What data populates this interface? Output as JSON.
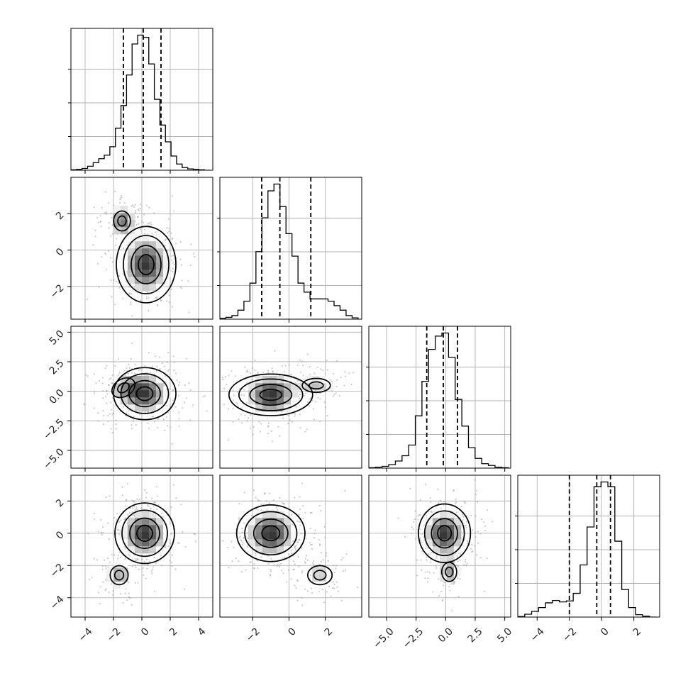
{
  "chart_data": {
    "type": "corner",
    "parameters": [
      {
        "range": [
          -5,
          5
        ],
        "ticks": [
          -4,
          -2,
          0,
          2,
          4
        ],
        "tick_labels": [
          "−4",
          "−2",
          "0",
          "2",
          "4"
        ],
        "quantiles": [
          -1.3,
          0.1,
          1.35
        ],
        "histogram_edges": [
          -5,
          4.8
        ],
        "histogram_counts": [
          1,
          2,
          4,
          9,
          17,
          26,
          34,
          53,
          95,
          146,
          215,
          285,
          305,
          300,
          240,
          160,
          102,
          64,
          32,
          14,
          6,
          3,
          2,
          1,
          0
        ]
      },
      {
        "range": [
          -3.8,
          4.0
        ],
        "ticks": [
          -2,
          0,
          2
        ],
        "tick_labels": [
          "−2",
          "0",
          "2"
        ],
        "quantiles": [
          -1.5,
          -0.5,
          1.2
        ],
        "histogram_edges": [
          -3.8,
          3.8
        ],
        "histogram_counts": [
          2,
          4,
          8,
          20,
          40,
          80,
          150,
          225,
          285,
          300,
          250,
          190,
          140,
          80,
          60,
          45,
          45,
          45,
          40,
          30,
          20,
          8,
          3
        ]
      },
      {
        "range": [
          -6.5,
          5.5
        ],
        "ticks": [
          -5,
          -2.5,
          0,
          2.5,
          5
        ],
        "tick_labels": [
          "−5.0",
          "−2.5",
          "0.0",
          "2.5",
          "5.0"
        ],
        "quantiles": [
          -1.6,
          -0.2,
          1.0
        ],
        "histogram_edges": [
          -6.5,
          5.3
        ],
        "histogram_counts": [
          1,
          2,
          4,
          8,
          16,
          28,
          52,
          118,
          196,
          268,
          298,
          305,
          250,
          155,
          95,
          46,
          22,
          10,
          6,
          2,
          1
        ]
      },
      {
        "range": [
          -5.2,
          3.6
        ],
        "ticks": [
          -4,
          -2,
          0,
          2
        ],
        "tick_labels": [
          "−4",
          "−2",
          "0",
          "2"
        ],
        "quantiles": [
          -2.0,
          -0.3,
          0.55
        ],
        "histogram_edges": [
          -5.2,
          3.4
        ],
        "histogram_counts": [
          1,
          6,
          12,
          20,
          30,
          35,
          32,
          34,
          50,
          110,
          190,
          275,
          285,
          275,
          160,
          58,
          20,
          5,
          2,
          0
        ]
      }
    ],
    "joint": {
      "1,0": [
        {
          "mean": [
            0.3,
            -0.8
          ],
          "cov": [
            [
              1.0,
              0
            ],
            [
              0,
              1.0
            ]
          ],
          "weight": 0.8
        },
        {
          "mean": [
            -1.4,
            1.6
          ],
          "cov": [
            [
              0.35,
              0
            ],
            [
              0,
              0.3
            ]
          ],
          "weight": 0.2
        }
      ],
      "2,0": [
        {
          "mean": [
            0.2,
            -0.2
          ],
          "cov": [
            [
              1.1,
              0
            ],
            [
              0,
              1.1
            ]
          ],
          "weight": 0.8
        },
        {
          "mean": [
            -1.3,
            0.3
          ],
          "cov": [
            [
              0.7,
              0.1
            ],
            [
              0.1,
              0.6
            ]
          ],
          "weight": 0.2
        }
      ],
      "2,1": [
        {
          "mean": [
            -1.0,
            -0.3
          ],
          "cov": [
            [
              0.7,
              0
            ],
            [
              0,
              1.2
            ]
          ],
          "weight": 0.8
        },
        {
          "mean": [
            1.5,
            0.5
          ],
          "cov": [
            [
              0.6,
              0
            ],
            [
              0,
              0.35
            ]
          ],
          "weight": 0.2
        }
      ],
      "3,0": [
        {
          "mean": [
            0.2,
            0.0
          ],
          "cov": [
            [
              1.0,
              0
            ],
            [
              0,
              0.8
            ]
          ],
          "weight": 0.8
        },
        {
          "mean": [
            -1.6,
            -2.6
          ],
          "cov": [
            [
              0.4,
              0
            ],
            [
              0,
              0.35
            ]
          ],
          "weight": 0.2
        }
      ],
      "3,1": [
        {
          "mean": [
            -1.0,
            0.0
          ],
          "cov": [
            [
              0.7,
              0
            ],
            [
              0,
              0.8
            ]
          ],
          "weight": 0.8
        },
        {
          "mean": [
            1.7,
            -2.6
          ],
          "cov": [
            [
              0.35,
              0
            ],
            [
              0,
              0.45
            ]
          ],
          "weight": 0.2
        }
      ],
      "3,2": [
        {
          "mean": [
            -0.1,
            0.0
          ],
          "cov": [
            [
              1.1,
              0
            ],
            [
              0,
              0.75
            ]
          ],
          "weight": 0.8
        },
        {
          "mean": [
            0.3,
            -2.4
          ],
          "cov": [
            [
              0.35,
              0
            ],
            [
              0,
              0.4
            ]
          ],
          "weight": 0.2
        }
      ]
    },
    "contour_levels": [
      "0.5σ",
      "1σ",
      "1.5σ",
      "2σ"
    ],
    "grid": true
  }
}
